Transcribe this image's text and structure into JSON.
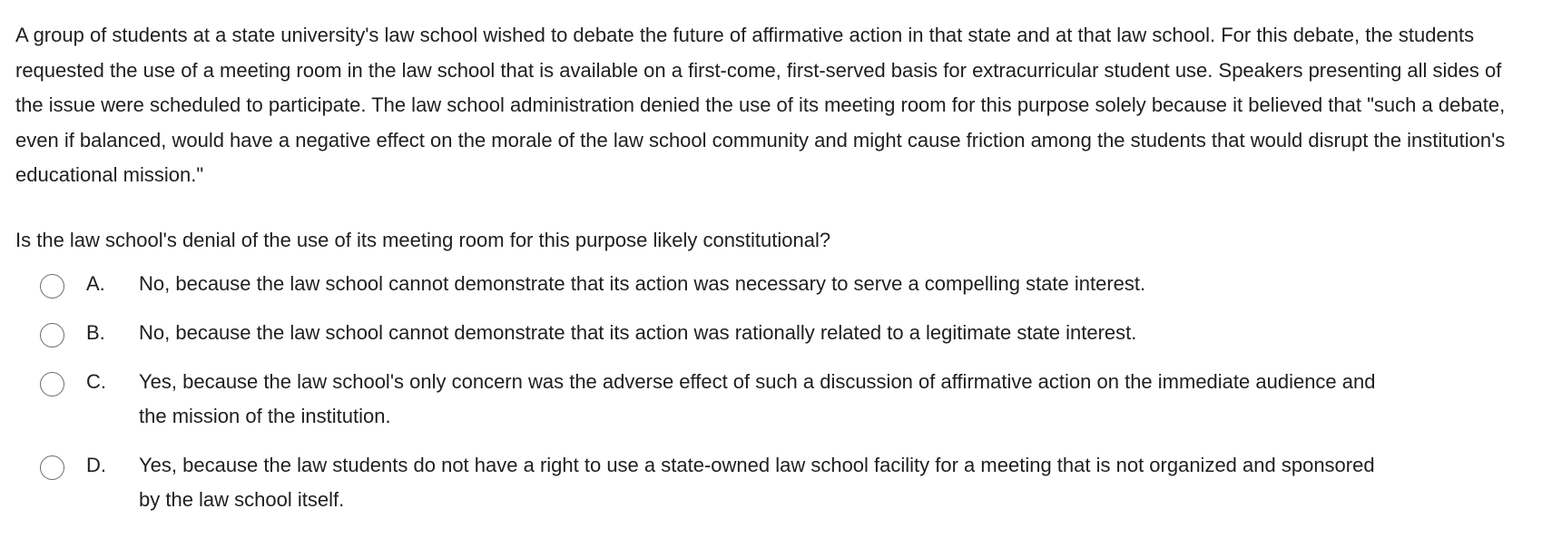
{
  "question": {
    "stem": "A group of students at a state university's law school wished to debate the future of affirmative action in that state and at that law school.  For this debate, the students requested the use of a meeting room in the law school that is available on a first-come, first-served basis for extracurricular student use.  Speakers presenting all sides of the issue were scheduled to participate.  The law school administration denied the use of its meeting room for this purpose solely because it believed that \"such a debate, even if balanced, would have a negative effect on the morale of the law school community and might cause friction among the students that would disrupt the institution's educational mission.\"",
    "prompt": "Is the law school's denial of the use of its meeting room for this purpose likely constitutional?",
    "options": [
      {
        "letter": "A.",
        "text": "No, because the law school cannot demonstrate that its action was necessary to serve a compelling state interest."
      },
      {
        "letter": "B.",
        "text": "No, because the law school cannot demonstrate that its action was rationally related to a legitimate state interest."
      },
      {
        "letter": "C.",
        "text": "Yes, because the law school's only concern was the adverse effect of such a discussion of affirmative action on the immediate audience and the mission of the institution."
      },
      {
        "letter": "D.",
        "text": "Yes, because the law students do not have a right to use a state-owned law school facility for a meeting that is not organized and sponsored by the law school itself."
      }
    ]
  },
  "colors": {
    "text": "#1f1f1f",
    "radio_border": "#6b6b6b",
    "background": "#ffffff"
  }
}
